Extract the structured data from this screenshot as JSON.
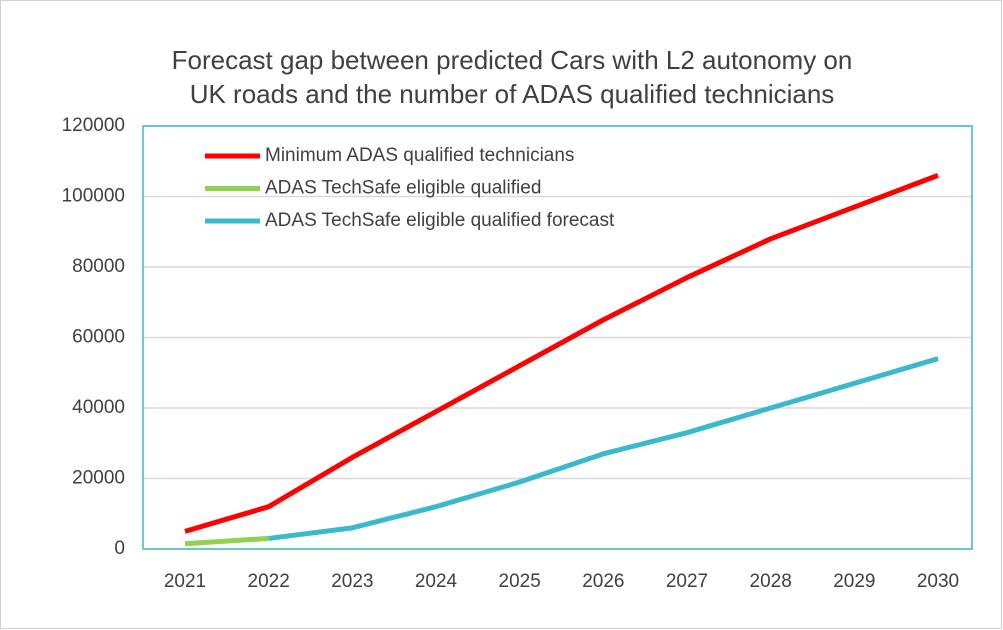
{
  "chart_data": {
    "type": "line",
    "title": [
      "Forecast gap between predicted Cars with L2 autonomy on",
      "UK roads and the number of ADAS qualified technicians"
    ],
    "categories": [
      "2021",
      "2022",
      "2023",
      "2024",
      "2025",
      "2026",
      "2027",
      "2028",
      "2029",
      "2030"
    ],
    "series": [
      {
        "name": "Minimum ADAS qualified technicians",
        "color": "#ff0000",
        "values": [
          5000,
          12000,
          26000,
          39000,
          52000,
          65000,
          77000,
          88000,
          97000,
          106000
        ]
      },
      {
        "name": "ADAS TechSafe eligible qualified",
        "color": "#92d050",
        "values": [
          1500,
          3000,
          null,
          null,
          null,
          null,
          null,
          null,
          null,
          null
        ]
      },
      {
        "name": "ADAS TechSafe eligible qualified forecast",
        "color": "#3bb9cc",
        "values": [
          null,
          3000,
          6000,
          12000,
          19000,
          27000,
          33000,
          40000,
          47000,
          54000
        ]
      }
    ],
    "ylim": [
      0,
      120000
    ],
    "yticks": [
      0,
      20000,
      40000,
      60000,
      80000,
      100000,
      120000
    ],
    "grid": true,
    "legend": "upper left"
  }
}
